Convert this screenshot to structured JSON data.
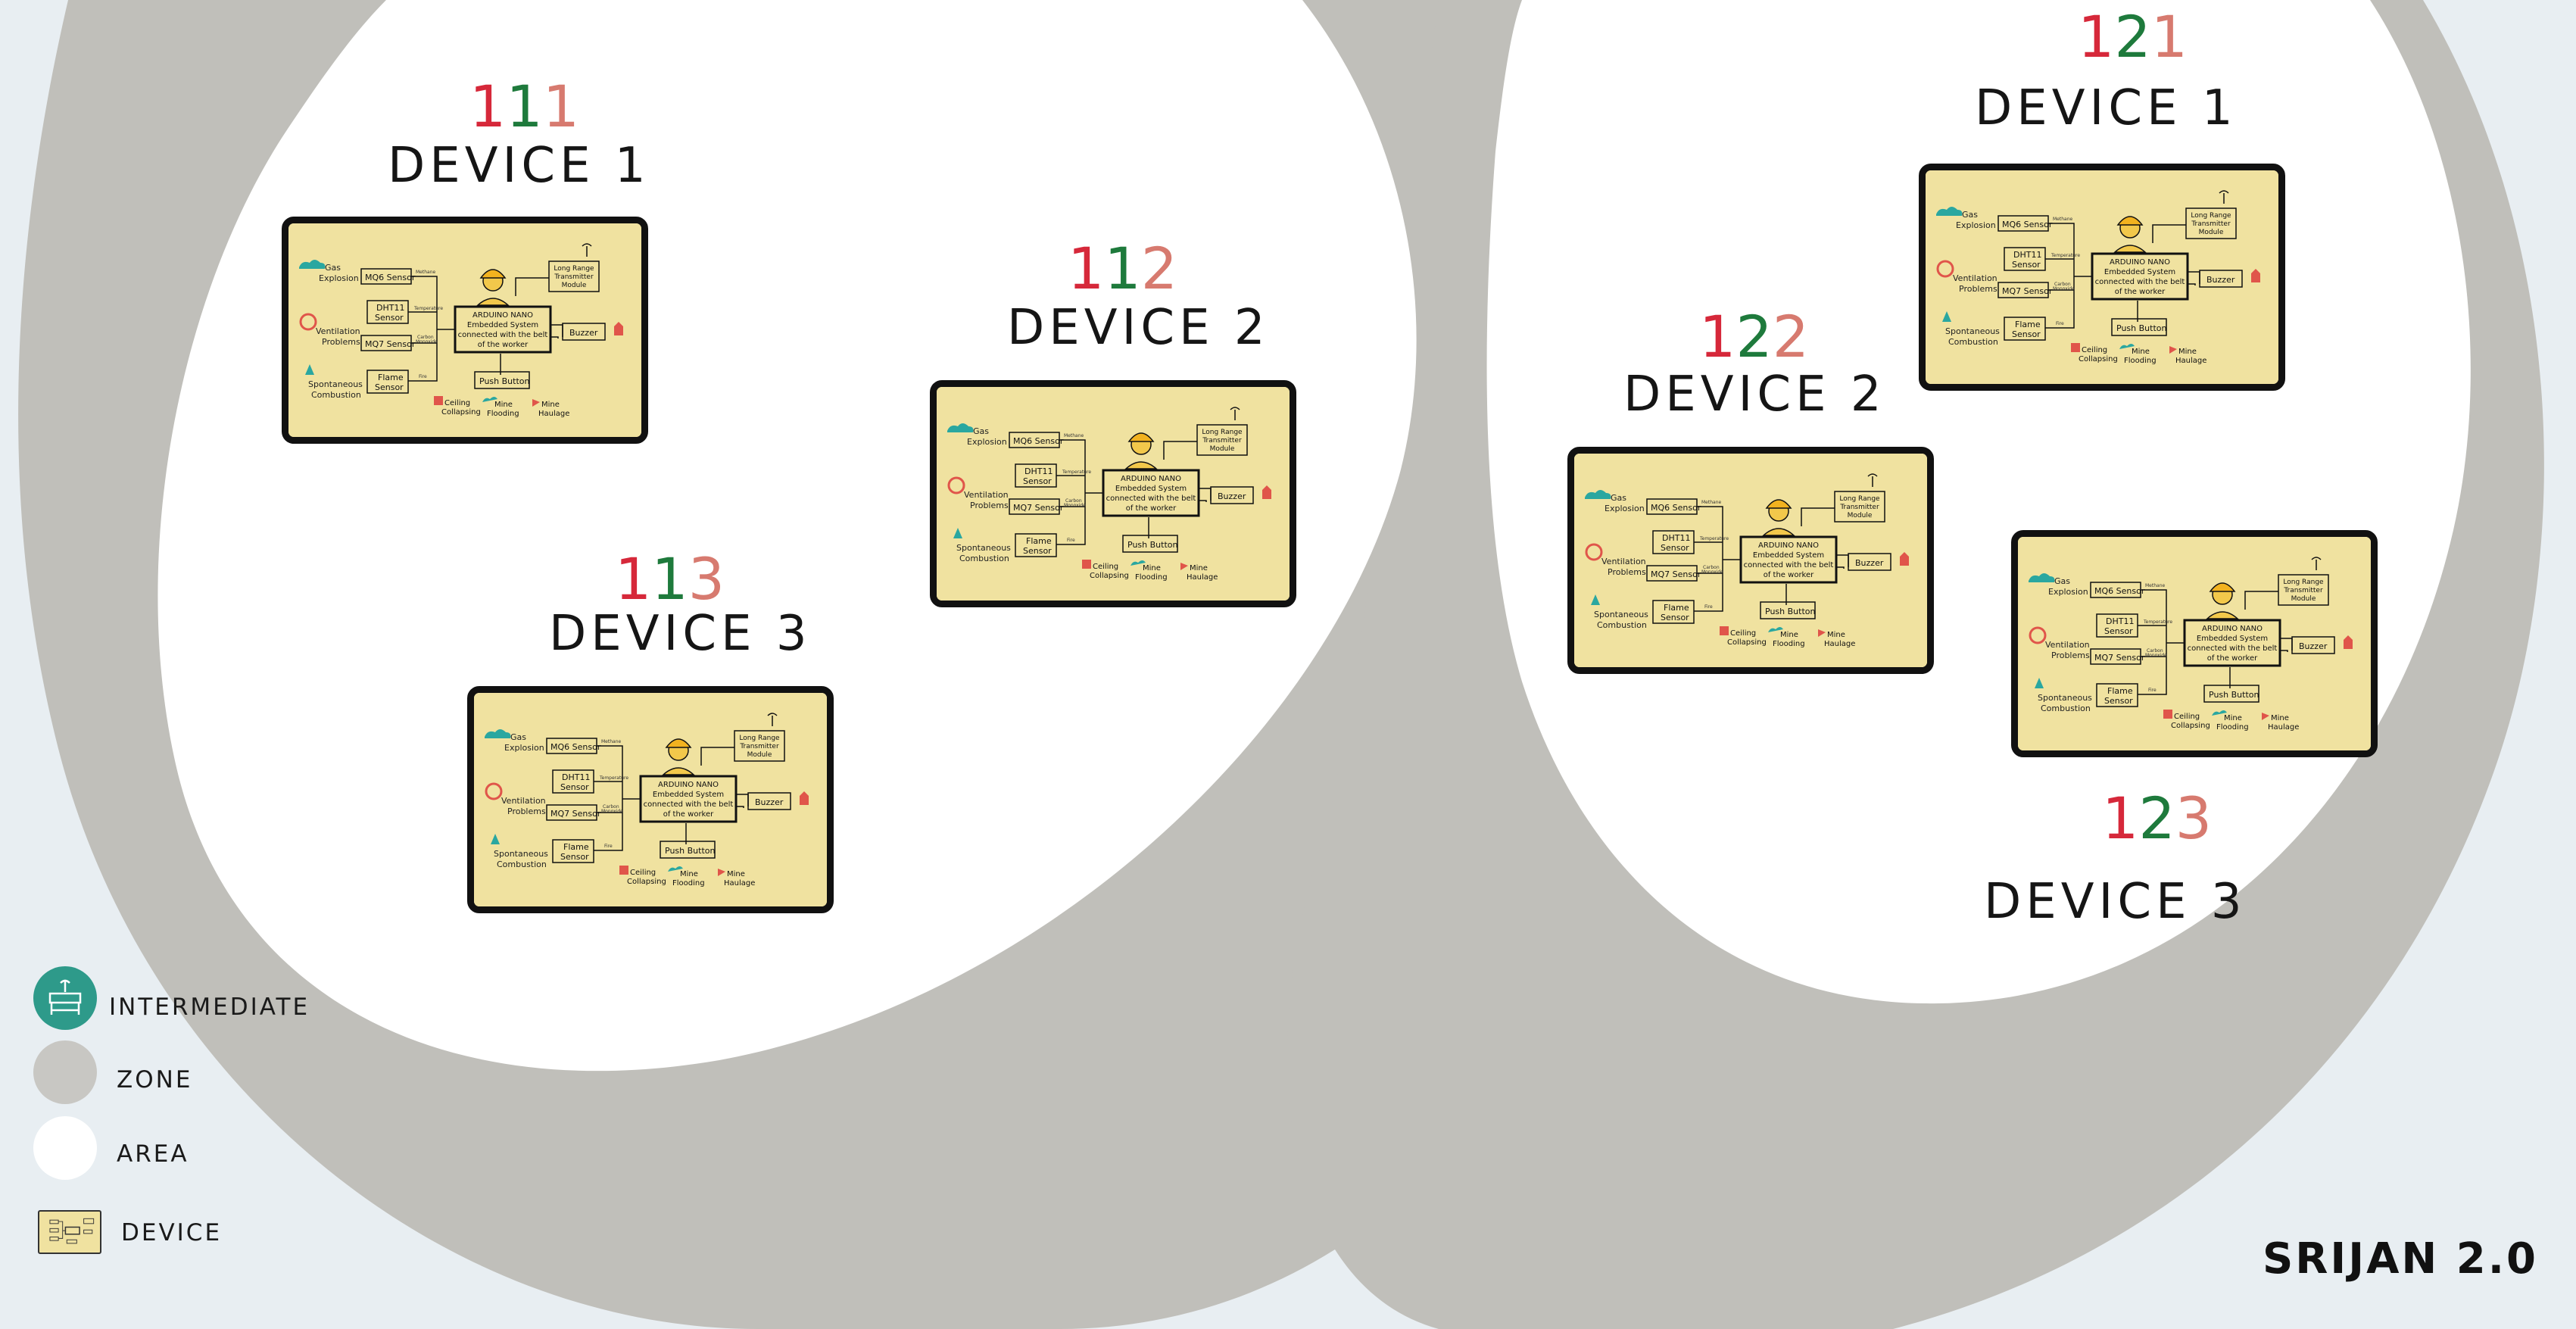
{
  "brand": "SRIJAN 2.0",
  "colors": {
    "background": "#e8eef2",
    "zone": "#c0bfba",
    "area": "#ffffff",
    "intermediate": "#2e9a8a",
    "device_card": "#f0e2a0",
    "code_red": "#d6283a",
    "code_green": "#1e7a3c",
    "code_salmon": "#d77a6f"
  },
  "legend": [
    {
      "icon": "intermediate-node-icon",
      "label": "INTERMEDIATE"
    },
    {
      "icon": "zone-circle",
      "label": "ZONE"
    },
    {
      "icon": "area-circle",
      "label": "AREA"
    },
    {
      "icon": "device-card-thumbnail",
      "label": "DEVICE"
    }
  ],
  "devices": [
    {
      "code": [
        "1",
        "1",
        "1"
      ],
      "label": "DEVICE 1"
    },
    {
      "code": [
        "1",
        "1",
        "2"
      ],
      "label": "DEVICE 2"
    },
    {
      "code": [
        "1",
        "1",
        "3"
      ],
      "label": "DEVICE 3"
    },
    {
      "code": [
        "1",
        "2",
        "1"
      ],
      "label": "DEVICE 1"
    },
    {
      "code": [
        "1",
        "2",
        "2"
      ],
      "label": "DEVICE 2"
    },
    {
      "code": [
        "1",
        "2",
        "3"
      ],
      "label": "DEVICE  3"
    }
  ],
  "schematic": {
    "gas": "Gas",
    "explosion": "Explosion",
    "ventilation": "Ventilation",
    "problems": "Problems",
    "spontaneous": "Spontaneous",
    "combustion": "Combustion",
    "mq6": "MQ6 Sensor",
    "dht11": "DHT11",
    "sensor": "Sensor",
    "mq7": "MQ7 Sensor",
    "flame": "Flame",
    "arduino_1": "ARDUINO NANO",
    "arduino_2": "Embedded System",
    "arduino_3": "connected with the belt",
    "arduino_4": "of the worker",
    "lr_1": "Long Range",
    "lr_2": "Transmitter",
    "lr_3": "Module",
    "buzzer": "Buzzer",
    "push": "Push Button",
    "ceiling": "Ceiling",
    "collapsing": "Collapsing",
    "mine": "Mine",
    "flooding": "Flooding",
    "haulage": "Haulage",
    "methane": "Methane",
    "temperature": "Temperature",
    "carbon": "Carbon",
    "monoxide": "Monoxide",
    "fire": "Fire"
  }
}
